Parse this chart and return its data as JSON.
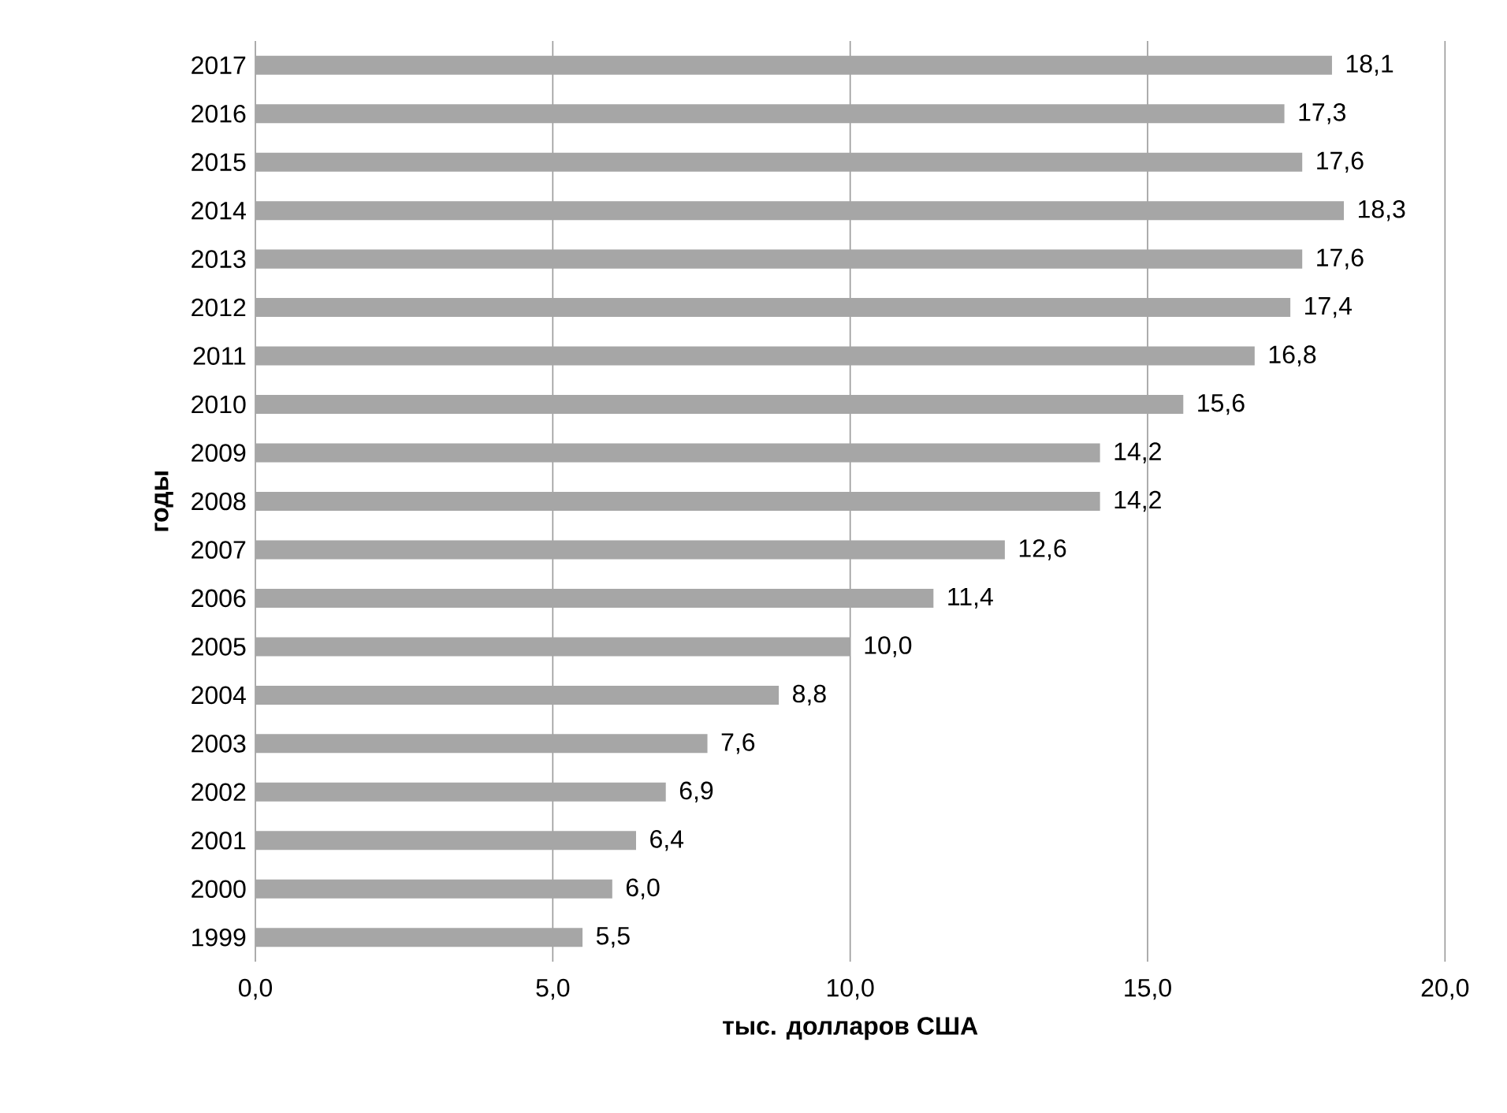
{
  "chart_data": {
    "type": "bar",
    "orientation": "horizontal",
    "xlabel": "тыс. долларов США",
    "ylabel": "годы",
    "categories": [
      "2017",
      "2016",
      "2015",
      "2014",
      "2013",
      "2012",
      "2011",
      "2010",
      "2009",
      "2008",
      "2007",
      "2006",
      "2005",
      "2004",
      "2003",
      "2002",
      "2001",
      "2000",
      "1999"
    ],
    "values": [
      18.1,
      17.3,
      17.6,
      18.3,
      17.6,
      17.4,
      16.8,
      15.6,
      14.2,
      14.2,
      12.6,
      11.4,
      10.0,
      8.8,
      7.6,
      6.9,
      6.4,
      6.0,
      5.5
    ],
    "value_labels": [
      "18,1",
      "17,3",
      "17,6",
      "18,3",
      "17,6",
      "17,4",
      "16,8",
      "15,6",
      "14,2",
      "14,2",
      "12,6",
      "11,4",
      "10,0",
      "8,8",
      "7,6",
      "6,9",
      "6,4",
      "6,0",
      "5,5"
    ],
    "color": "#a6a6a6",
    "xlim": [
      0,
      20
    ],
    "xticks": [
      {
        "value": 0,
        "label": "0,0"
      },
      {
        "value": 5,
        "label": "5,0"
      },
      {
        "value": 10,
        "label": "10,0"
      },
      {
        "value": 15,
        "label": "15,0"
      },
      {
        "value": 20,
        "label": "20,0"
      }
    ],
    "grid": "x"
  }
}
